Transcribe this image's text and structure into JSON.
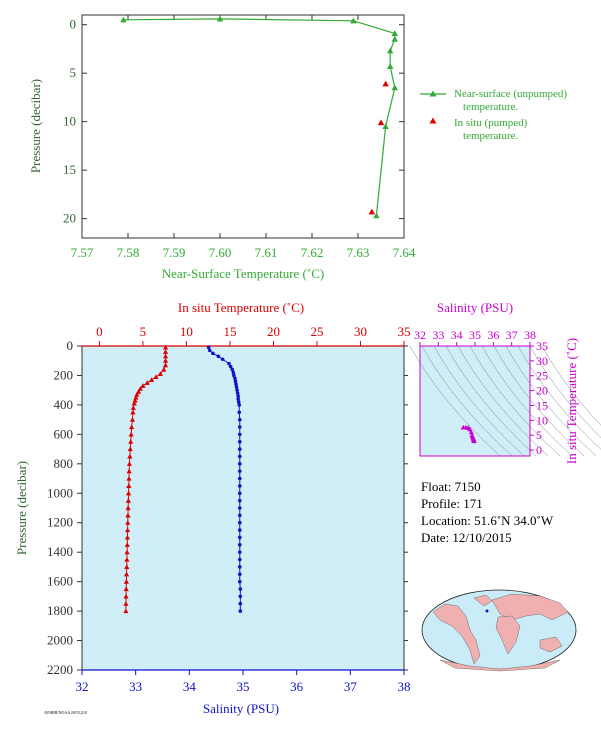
{
  "colors": {
    "green": "#33aa33",
    "red": "#dd0000",
    "blue": "#1111cc",
    "magenta": "#cc00cc",
    "axis_dark": "#333333",
    "label_green": "#336633",
    "panel_bg": "#cfeef7",
    "ocean": "#c9ecf8",
    "land": "#f0b0b0"
  },
  "chart_data": [
    {
      "type": "line",
      "xlabel": "Near-Surface Temperature (˚C)",
      "ylabel": "Pressure (decibar)",
      "xlim": [
        7.57,
        7.64
      ],
      "ylim": [
        22,
        -1
      ],
      "xticks": [
        "7.57",
        "7.58",
        "7.59",
        "7.60",
        "7.61",
        "7.62",
        "7.63",
        "7.64"
      ],
      "yticks": [
        "0",
        "5",
        "10",
        "15",
        "20"
      ],
      "legend_position": "right",
      "series": [
        {
          "name": "Near-surface (unpumped) temperature.",
          "color": "#33aa33",
          "marker": "triangle",
          "x": [
            7.579,
            7.6,
            7.629,
            7.638,
            7.638,
            7.637,
            7.637,
            7.638,
            7.636,
            7.634
          ],
          "y": [
            -0.5,
            -0.6,
            -0.4,
            0.9,
            1.5,
            2.7,
            4.3,
            6.5,
            10.5,
            19.7
          ]
        },
        {
          "name": "In situ (pumped) temperature.",
          "color": "#dd0000",
          "marker": "triangle",
          "x": [
            7.636,
            7.635,
            7.633
          ],
          "y": [
            6.1,
            10.1,
            19.3
          ]
        }
      ]
    },
    {
      "type": "line",
      "x_top_label": "In situ Temperature (˚C)",
      "x_bottom_label": "Salinity (PSU)",
      "ylabel": "Pressure (decibar)",
      "temp_lim": [
        -2,
        35
      ],
      "sal_lim": [
        32,
        38
      ],
      "ylim": [
        2200,
        0
      ],
      "temp_ticks": [
        "0",
        "5",
        "10",
        "15",
        "20",
        "25",
        "30",
        "35"
      ],
      "sal_ticks": [
        "32",
        "33",
        "34",
        "35",
        "36",
        "37",
        "38"
      ],
      "yticks": [
        "0",
        "200",
        "400",
        "600",
        "800",
        "1000",
        "1200",
        "1400",
        "1600",
        "1800",
        "2000",
        "2200"
      ],
      "temperature": {
        "color": "#dd0000",
        "pressure": [
          10,
          40,
          70,
          100,
          130,
          160,
          190,
          210,
          230,
          250,
          270,
          290,
          310,
          330,
          350,
          370,
          390,
          420,
          450,
          500,
          550,
          600,
          650,
          700,
          750,
          800,
          850,
          900,
          950,
          1000,
          1050,
          1100,
          1150,
          1200,
          1250,
          1300,
          1350,
          1400,
          1450,
          1500,
          1550,
          1600,
          1650,
          1700,
          1750,
          1800
        ],
        "values": [
          7.6,
          7.6,
          7.6,
          7.6,
          7.6,
          7.4,
          7.0,
          6.5,
          6.0,
          5.5,
          5.0,
          4.7,
          4.5,
          4.3,
          4.2,
          4.1,
          4.0,
          3.9,
          3.85,
          3.8,
          3.7,
          3.65,
          3.6,
          3.55,
          3.5,
          3.45,
          3.42,
          3.4,
          3.38,
          3.35,
          3.33,
          3.3,
          3.28,
          3.26,
          3.24,
          3.22,
          3.2,
          3.18,
          3.16,
          3.14,
          3.12,
          3.1,
          3.08,
          3.06,
          3.05,
          3.04
        ]
      },
      "salinity": {
        "color": "#1111cc",
        "pressure": [
          10,
          30,
          50,
          70,
          90,
          120,
          140,
          160,
          180,
          200,
          220,
          240,
          260,
          280,
          300,
          320,
          340,
          360,
          380,
          400,
          450,
          500,
          550,
          600,
          650,
          700,
          750,
          800,
          850,
          900,
          950,
          1000,
          1050,
          1100,
          1150,
          1200,
          1250,
          1300,
          1350,
          1400,
          1450,
          1500,
          1550,
          1600,
          1650,
          1700,
          1750,
          1800
        ],
        "values": [
          34.36,
          34.38,
          34.44,
          34.54,
          34.62,
          34.74,
          34.77,
          34.8,
          34.82,
          34.83,
          34.85,
          34.86,
          34.87,
          34.88,
          34.89,
          34.9,
          34.91,
          34.91,
          34.92,
          34.93,
          34.93,
          34.94,
          34.94,
          34.94,
          34.94,
          34.94,
          34.94,
          34.94,
          34.94,
          34.94,
          34.94,
          34.94,
          34.94,
          34.94,
          34.94,
          34.94,
          34.94,
          34.94,
          34.94,
          34.94,
          34.94,
          34.94,
          34.94,
          34.94,
          34.95,
          34.95,
          34.95,
          34.95
        ]
      }
    },
    {
      "type": "scatter",
      "xlabel": "Salinity (PSU)",
      "ylabel": "In situ Temperature (˚C)",
      "xlim": [
        32,
        38
      ],
      "ylim": [
        -2,
        35
      ],
      "xticks": [
        "32",
        "33",
        "34",
        "35",
        "36",
        "37",
        "38"
      ],
      "yticks": [
        "0",
        "5",
        "10",
        "15",
        "20",
        "25",
        "30",
        "35"
      ],
      "color": "#cc00cc",
      "points": [
        [
          34.36,
          7.6
        ],
        [
          34.5,
          7.6
        ],
        [
          34.62,
          7.5
        ],
        [
          34.72,
          7.0
        ],
        [
          34.8,
          6.0
        ],
        [
          34.84,
          5.0
        ],
        [
          34.87,
          4.5
        ],
        [
          34.9,
          4.0
        ],
        [
          34.92,
          3.8
        ],
        [
          34.93,
          3.5
        ],
        [
          34.94,
          3.3
        ],
        [
          34.95,
          3.05
        ]
      ]
    }
  ],
  "float_info": {
    "float": "Float:  7150",
    "profile": "Profile:  171",
    "location": "Location:  51.6˚N  34.0˚W",
    "date": "Date:  12/10/2015"
  },
  "footer_stamp": "AVHRR/NOAA 20151210"
}
